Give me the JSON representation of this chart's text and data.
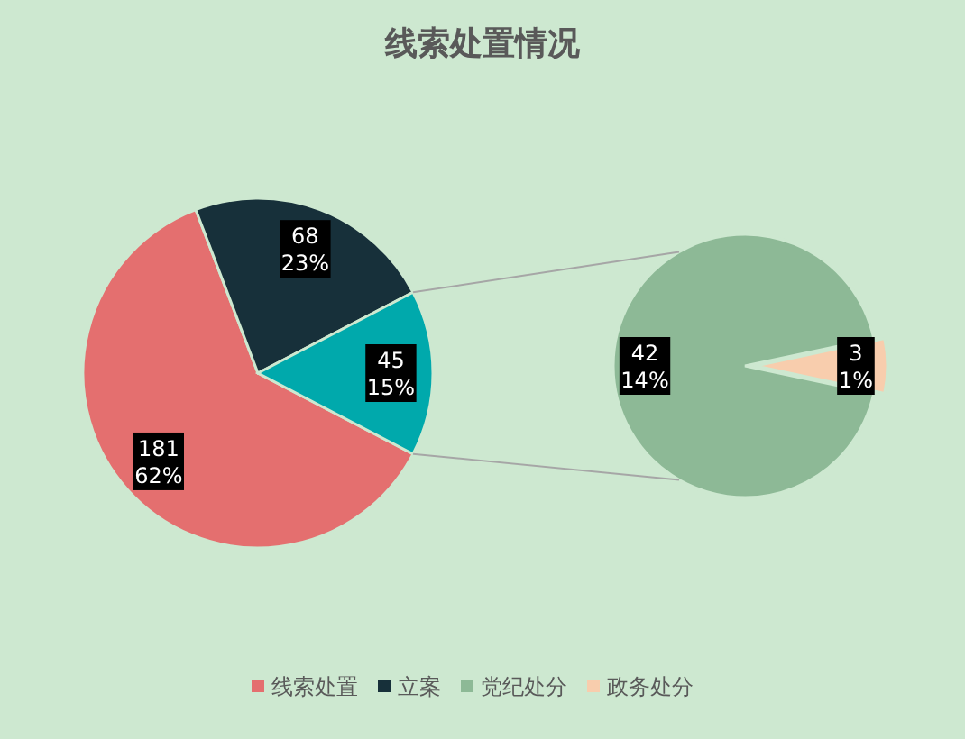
{
  "chart_data": [
    {
      "type": "pie",
      "title": "线索处置情况",
      "categories": [
        "线索处置",
        "立案",
        null
      ],
      "values": [
        181,
        68,
        45
      ],
      "colors": [
        "#e46f6f",
        "#17303a",
        "#00a9ac"
      ],
      "value_labels": [
        "181\n62%",
        "68\n23%",
        "45\n15%"
      ],
      "legend": "bottom"
    },
    {
      "type": "pie",
      "categories": [
        "党纪处分",
        "政务处分"
      ],
      "values": [
        42,
        3
      ],
      "colors": [
        "#8db996",
        "#f8cdad"
      ],
      "value_labels": [
        "42\n14%",
        "3\n1%"
      ],
      "legend": "bottom"
    }
  ]
}
